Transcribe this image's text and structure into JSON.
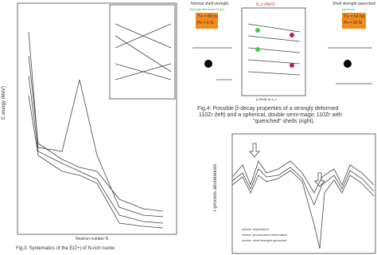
{
  "left_figure": {
    "y_axis_label": "E energy (MeV)",
    "x_axis_label": "Neutron number N",
    "caption": "Fig.3: Systematics of the E(2+) of N-rich nuclei"
  },
  "top_figure": {
    "left_heading": "Normal shell strength",
    "left_subheading": "Strongly deformed 110Zr",
    "middle_heading": "S_n (MeV)",
    "right_heading": "Shell strength quenched",
    "right_subheading": "spherical",
    "left_box": [
      "T½ = 88 ms",
      "Pn = 6 %"
    ],
    "right_box": [
      "T½ = 54 ms",
      "Pn = 32 %"
    ],
    "middle_footer": "β-Pfaffs at a_n"
  },
  "caption": {
    "label": "Fig.4:",
    "text": "Possible β-decay properties of a strongly deformed",
    "line2": "110Zr (left) and a spherical, double semi-magic 110Zr with",
    "line3": "\"quenched\" shells (right)."
  },
  "bottom_figure": {
    "y_axis_label": "r-process abundances",
    "legend": [
      "experiment",
      "pronounced deformation",
      "shell strength quenched"
    ]
  }
}
